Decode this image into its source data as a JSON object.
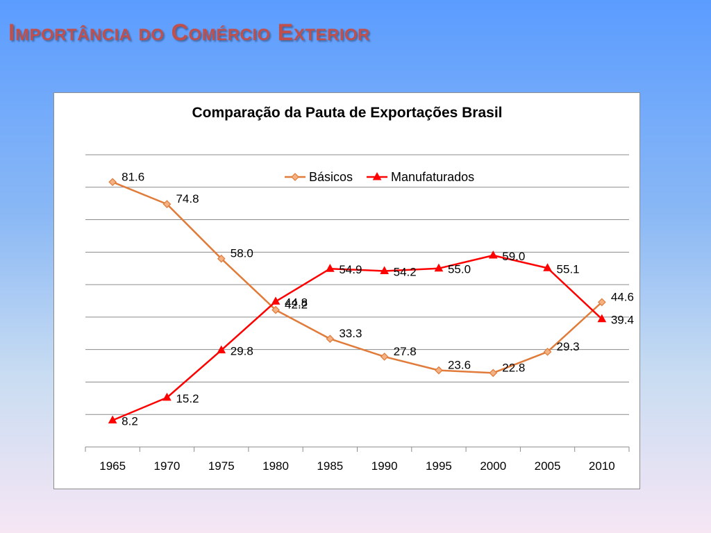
{
  "slide": {
    "title": "Importância do Comércio Exterior"
  },
  "chart_data": {
    "type": "line",
    "title": "Comparação da Pauta de Exportações Brasil",
    "xlabel": "",
    "ylabel": "",
    "categories": [
      "1965",
      "1970",
      "1975",
      "1980",
      "1985",
      "1990",
      "1995",
      "2000",
      "2005",
      "2010"
    ],
    "series": [
      {
        "name": "Básicos",
        "color": "#e07b39",
        "marker": "diamond",
        "values": [
          81.6,
          74.8,
          58.0,
          42.2,
          33.3,
          27.8,
          23.6,
          22.8,
          29.3,
          44.6
        ]
      },
      {
        "name": "Manufaturados",
        "color": "#ff0000",
        "marker": "triangle",
        "values": [
          8.2,
          15.2,
          29.8,
          44.8,
          54.9,
          54.2,
          55.0,
          59.0,
          55.1,
          39.4
        ]
      }
    ],
    "ylim": [
      0,
      90
    ],
    "y_axis_labels_shown": false,
    "grid": true,
    "legend_position": "top-right"
  }
}
